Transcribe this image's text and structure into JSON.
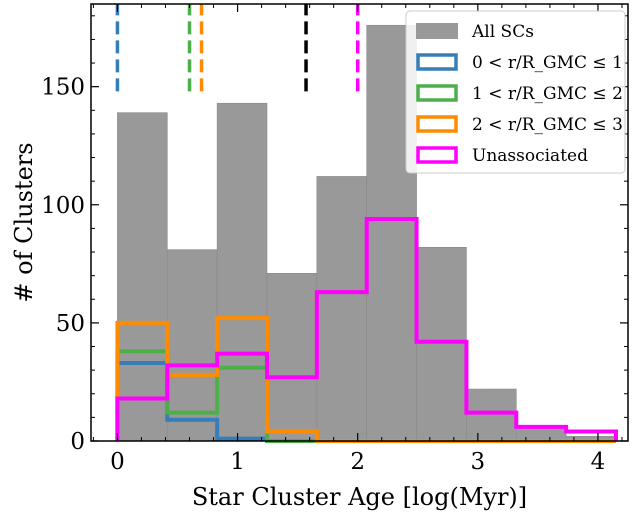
{
  "chart_data": {
    "type": "bar",
    "xlabel": "Star Cluster Age [log(Myr)]",
    "ylabel": "# of Clusters",
    "xlim": [
      -0.22,
      4.25
    ],
    "ylim": [
      0,
      185
    ],
    "x_ticks": [
      0,
      1,
      2,
      3,
      4
    ],
    "y_ticks": [
      0,
      50,
      100,
      150
    ],
    "x_minor_step": 0.2,
    "y_minor_step": 10,
    "bin_edges": [
      0.0,
      0.415,
      0.83,
      1.245,
      1.66,
      2.075,
      2.49,
      2.905,
      3.32,
      3.735,
      4.15
    ],
    "legend_position": "top-right",
    "series": [
      {
        "name": "All SCs",
        "style": "filled",
        "color": "#999999",
        "values": [
          139,
          81,
          143,
          71,
          112,
          176,
          82,
          22,
          6,
          2
        ]
      },
      {
        "name": "0 < r/R_GMC ≤ 1",
        "style": "step",
        "color": "#377eb8",
        "values": [
          33,
          9,
          1,
          0,
          0,
          0,
          0,
          0,
          0,
          0
        ]
      },
      {
        "name": "1 < r/R_GMC ≤ 2",
        "style": "step",
        "color": "#4daf4a",
        "values": [
          38,
          12,
          31,
          0,
          0,
          0,
          0,
          0,
          0,
          0
        ]
      },
      {
        "name": "2 < r/R_GMC ≤ 3",
        "style": "step",
        "color": "#ff8c00",
        "values": [
          50,
          28,
          52,
          4,
          0,
          0,
          0,
          0,
          0,
          0
        ]
      },
      {
        "name": "Unassociated",
        "style": "step",
        "color": "#ff00ff",
        "values": [
          18,
          32,
          37,
          27,
          63,
          94,
          42,
          12,
          6,
          4
        ]
      }
    ],
    "median_markers": [
      {
        "color": "#377eb8",
        "x": 0.0
      },
      {
        "color": "#4daf4a",
        "x": 0.6
      },
      {
        "color": "#ff8c00",
        "x": 0.7
      },
      {
        "color": "#000000",
        "x": 1.57
      },
      {
        "color": "#ff00ff",
        "x": 2.0
      }
    ],
    "median_marker_range": [
      148,
      185
    ]
  }
}
